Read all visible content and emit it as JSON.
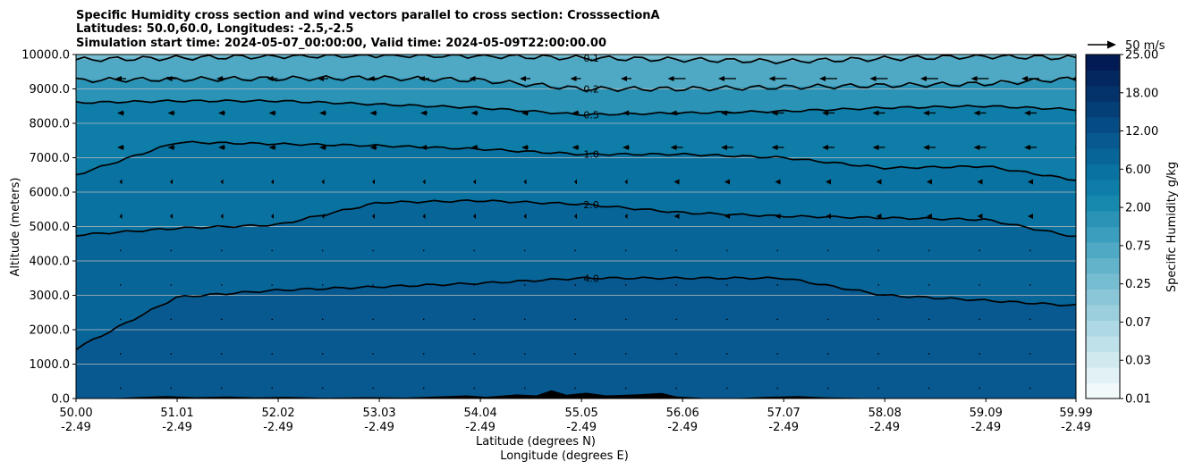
{
  "chart_data": {
    "type": "contour",
    "title_lines": [
      "Specific Humidity cross section and wind vectors parallel to cross section: CrosssectionA",
      "Latitudes: 50.0,60.0, Longitudes: -2.5,-2.5",
      "Simulation start time: 2024-05-07_00:00:00, Valid time: 2024-05-09T22:00:00.00"
    ],
    "xlabel_line1": "Latitude (degrees N)",
    "xlabel_line2": "Longitude (degrees E)",
    "ylabel": "Altitude (meters)",
    "x_ticks": [
      {
        "lat": "50.00",
        "lon": "-2.49",
        "v": 50.0
      },
      {
        "lat": "51.01",
        "lon": "-2.49",
        "v": 51.01
      },
      {
        "lat": "52.02",
        "lon": "-2.49",
        "v": 52.02
      },
      {
        "lat": "53.03",
        "lon": "-2.49",
        "v": 53.03
      },
      {
        "lat": "54.04",
        "lon": "-2.49",
        "v": 54.04
      },
      {
        "lat": "55.05",
        "lon": "-2.49",
        "v": 55.05
      },
      {
        "lat": "56.06",
        "lon": "-2.49",
        "v": 56.06
      },
      {
        "lat": "57.07",
        "lon": "-2.49",
        "v": 57.07
      },
      {
        "lat": "58.08",
        "lon": "-2.49",
        "v": 58.08
      },
      {
        "lat": "59.09",
        "lon": "-2.49",
        "v": 59.09
      },
      {
        "lat": "59.99",
        "lon": "-2.49",
        "v": 59.99
      }
    ],
    "xlim": [
      50.0,
      59.99
    ],
    "y_ticks": [
      "0.0",
      "1000.0",
      "2000.0",
      "3000.0",
      "4000.0",
      "5000.0",
      "6000.0",
      "7000.0",
      "8000.0",
      "9000.0",
      "10000.0"
    ],
    "ylim": [
      0,
      10000
    ],
    "colorbar": {
      "label": "Specific Humidity g/kg",
      "levels": [
        0.01,
        0.02,
        0.03,
        0.05,
        0.07,
        0.1,
        0.15,
        0.25,
        0.35,
        0.5,
        0.75,
        1.0,
        1.5,
        2.0,
        3.0,
        4.0,
        6.0,
        8.0,
        12.0,
        15.0,
        18.0,
        21.0,
        25.0
      ],
      "tick_labels": [
        "0.01",
        "0.03",
        "0.07",
        "0.25",
        "0.75",
        "2.00",
        "6.00",
        "12.00",
        "18.00",
        "25.00"
      ],
      "colors": [
        "#f2f9fb",
        "#e2f1f5",
        "#d0e9ef",
        "#bfe1ea",
        "#aed8e4",
        "#9ccfdd",
        "#8ac6d7",
        "#77bdd1",
        "#63b3cb",
        "#50a9c4",
        "#3c9ebe",
        "#2a93b6",
        "#1789ae",
        "#0e7ea8",
        "#0a72a0",
        "#086598",
        "#075990",
        "#064c84",
        "#053f78",
        "#04336b",
        "#03275f",
        "#021b55"
      ]
    },
    "contours": [
      {
        "level": "0.1",
        "label": "0.1",
        "heights_m": [
          9850,
          9900,
          9950,
          9980,
          9960,
          9900,
          9850,
          9800,
          9880,
          9950,
          9900
        ]
      },
      {
        "level": "0.2",
        "label": "0.2",
        "heights_m": [
          9250,
          9280,
          9300,
          9320,
          9250,
          9000,
          9000,
          9050,
          9100,
          9150,
          9300
        ]
      },
      {
        "level": "0.5",
        "label": "0.5",
        "heights_m": [
          8600,
          8650,
          8650,
          8550,
          8450,
          8250,
          8300,
          8350,
          8450,
          8500,
          8400
        ]
      },
      {
        "level": "1.0",
        "label": "1.0",
        "heights_m": [
          6500,
          7450,
          7400,
          7350,
          7250,
          7100,
          7100,
          7000,
          6700,
          6750,
          6350
        ]
      },
      {
        "level": "2.0",
        "label": "2.0",
        "heights_m": [
          4750,
          4950,
          5050,
          5700,
          5750,
          5650,
          5400,
          5300,
          5250,
          5200,
          4700
        ]
      },
      {
        "level": "4.0",
        "label": "4.0",
        "heights_m": [
          1450,
          2950,
          3150,
          3250,
          3350,
          3500,
          3500,
          3500,
          3000,
          2850,
          2700
        ]
      }
    ],
    "wind_legend": {
      "label": "50 m/s"
    },
    "wind_note": "vectors predominantly westward (arrowheads pointing left), stronger aloft"
  }
}
